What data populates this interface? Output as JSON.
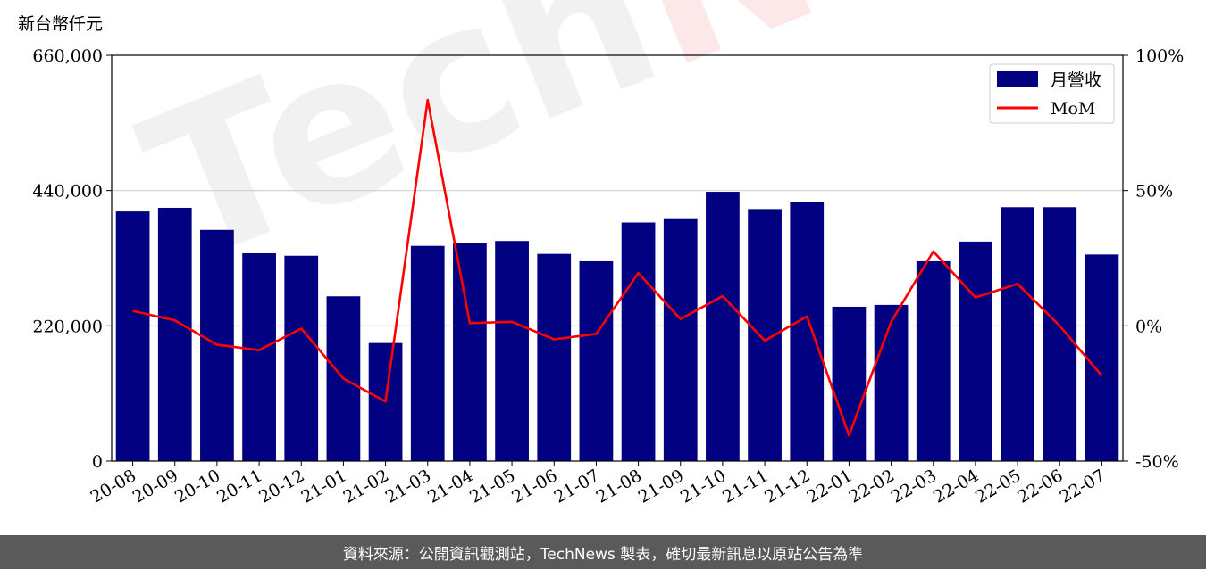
{
  "chart_data": {
    "type": "bar+line",
    "unit_label": "新台幣仟元",
    "categories": [
      "20-08",
      "20-09",
      "20-10",
      "20-11",
      "20-12",
      "21-01",
      "21-02",
      "21-03",
      "21-04",
      "21-05",
      "21-06",
      "21-07",
      "21-08",
      "21-09",
      "21-10",
      "21-11",
      "21-12",
      "22-01",
      "22-02",
      "22-03",
      "22-04",
      "22-05",
      "22-06",
      "22-07"
    ],
    "series": [
      {
        "name": "月營收",
        "type": "bar",
        "axis": "left",
        "color": "#000080",
        "values": [
          406000,
          412000,
          376000,
          338000,
          334000,
          268000,
          192000,
          350000,
          355000,
          358000,
          337000,
          325000,
          388000,
          395000,
          438000,
          410000,
          422000,
          251000,
          254000,
          325000,
          357000,
          413000,
          413000,
          336000
        ]
      },
      {
        "name": "MoM",
        "type": "line",
        "axis": "right",
        "color": "#ff0000",
        "values": [
          5.5,
          2,
          -7,
          -9,
          -1,
          -19.5,
          -28,
          83.5,
          1,
          1.5,
          -5,
          -3,
          19.5,
          2.5,
          11,
          -5.5,
          3.5,
          -40.5,
          1.5,
          27.5,
          10.5,
          15.5,
          0,
          -18.5
        ]
      }
    ],
    "left_axis": {
      "ylim": [
        0,
        660000
      ],
      "ticks": [
        "0",
        "220,000",
        "440,000",
        "660,000"
      ]
    },
    "right_axis": {
      "ylim": [
        -50,
        100
      ],
      "ticks": [
        "-50%",
        "0%",
        "50%",
        "100%"
      ]
    },
    "grid": "horizontal",
    "legend_position": "top-right"
  },
  "watermark": {
    "tech": "Tech",
    "news": "News"
  },
  "footer": {
    "text": "資料來源：公開資訊觀測站，TechNews 製表，確切最新訊息以原站公告為準"
  }
}
